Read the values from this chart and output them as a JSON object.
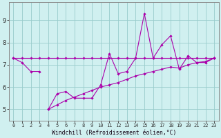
{
  "xlabel": "Windchill (Refroidissement éolien,°C)",
  "x": [
    0,
    1,
    2,
    3,
    4,
    5,
    6,
    7,
    8,
    9,
    10,
    11,
    12,
    13,
    14,
    15,
    16,
    17,
    18,
    19,
    20,
    21,
    22,
    23
  ],
  "line_zigzag": [
    null,
    null,
    null,
    null,
    5.0,
    5.7,
    5.8,
    5.5,
    5.5,
    5.5,
    6.1,
    7.5,
    6.6,
    6.7,
    7.3,
    9.3,
    7.3,
    7.9,
    8.3,
    6.8,
    7.4,
    7.1,
    7.1,
    7.3
  ],
  "line_short": [
    7.3,
    7.1,
    6.7,
    6.7,
    null,
    null,
    null,
    null,
    null,
    null,
    null,
    null,
    null,
    null,
    null,
    null,
    null,
    null,
    null,
    null,
    null,
    null,
    null,
    null
  ],
  "line_bottom": [
    null,
    null,
    null,
    null,
    5.0,
    5.2,
    5.4,
    5.55,
    5.7,
    5.85,
    6.0,
    6.1,
    6.2,
    6.35,
    6.5,
    6.6,
    6.7,
    6.8,
    6.9,
    6.85,
    7.0,
    7.1,
    7.15,
    7.3
  ],
  "line_flat": [
    7.3,
    7.3,
    7.3,
    7.3,
    7.3,
    7.3,
    7.3,
    7.3,
    7.3,
    7.3,
    7.3,
    7.3,
    7.3,
    7.3,
    7.3,
    7.3,
    7.3,
    7.3,
    7.3,
    7.3,
    7.3,
    7.3,
    7.3,
    7.3
  ],
  "bg_color": "#d0f0f0",
  "line_color": "#aa00aa",
  "grid_color": "#99cccc",
  "ylim": [
    4.5,
    9.8
  ],
  "yticks": [
    5,
    6,
    7,
    8,
    9
  ],
  "xlim": [
    -0.5,
    23.5
  ]
}
